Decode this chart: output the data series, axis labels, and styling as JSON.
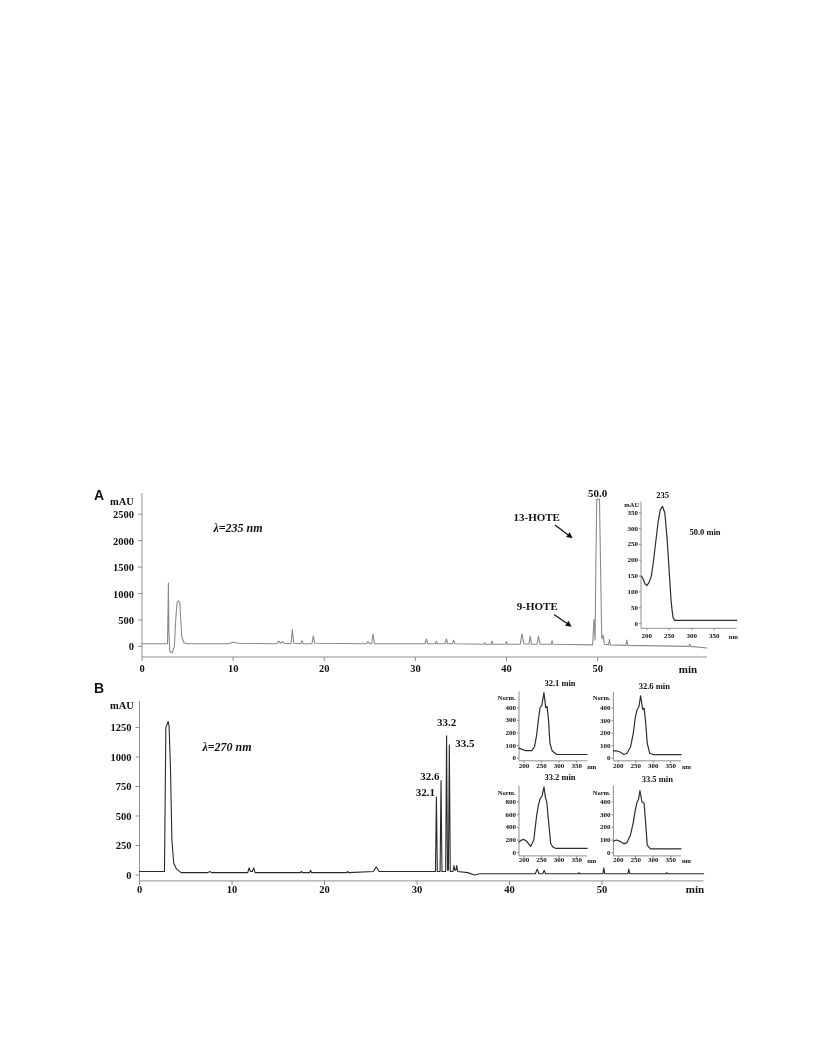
{
  "chart_data": [
    {
      "type": "line",
      "title": "A",
      "ylabel": "mAU",
      "xlabel": "min",
      "annotations": [
        "λ=235 nm",
        "13-HOTE",
        "9-HOTE",
        {
          "text": "50.0",
          "x": 50.0,
          "y": 2780
        }
      ],
      "xlim": [
        0,
        62
      ],
      "xticks": [
        0,
        10,
        20,
        30,
        40,
        50
      ],
      "ylim": [
        -200,
        2900
      ],
      "yticks": [
        0,
        500,
        1000,
        1500,
        2000,
        2500
      ],
      "x": [
        0,
        2.8,
        2.9,
        2.95,
        3.05,
        3.3,
        3.55,
        3.7,
        3.85,
        4.0,
        4.15,
        4.35,
        4.6,
        5.0,
        9.5,
        10.0,
        10.6,
        14.8,
        15.0,
        15.2,
        15.4,
        15.6,
        16.35,
        16.5,
        16.65,
        17.4,
        17.55,
        17.7,
        18.65,
        18.8,
        18.95,
        24.6,
        24.8,
        25.0,
        25.2,
        25.35,
        25.5,
        28.0,
        31.05,
        31.2,
        31.35,
        32.2,
        32.3,
        32.4,
        33.25,
        33.4,
        33.55,
        34.05,
        34.2,
        34.35,
        37.5,
        37.6,
        37.7,
        38.3,
        38.4,
        38.5,
        39.9,
        40.0,
        40.1,
        41.5,
        41.7,
        41.9,
        42.45,
        42.6,
        42.75,
        43.35,
        43.5,
        43.7,
        44.9,
        45.0,
        45.1,
        49.45,
        49.6,
        49.72,
        49.8,
        49.9,
        50.2,
        50.35,
        50.45,
        50.6,
        50.75,
        51.2,
        51.3,
        51.4,
        53.1,
        53.2,
        53.3,
        60.0,
        60.1,
        60.2,
        62.0
      ],
      "series": [
        {
          "color": "#8a8a8a",
          "values": [
            50,
            50,
            1200,
            300,
            -100,
            -120,
            0,
            500,
            830,
            860,
            820,
            200,
            70,
            50,
            50,
            80,
            60,
            50,
            100,
            60,
            90,
            60,
            50,
            320,
            60,
            50,
            110,
            50,
            50,
            200,
            60,
            50,
            90,
            50,
            50,
            240,
            50,
            50,
            50,
            140,
            50,
            50,
            100,
            50,
            50,
            140,
            50,
            50,
            120,
            50,
            40,
            70,
            40,
            40,
            100,
            40,
            40,
            90,
            40,
            40,
            240,
            50,
            40,
            190,
            40,
            40,
            190,
            40,
            40,
            110,
            40,
            30,
            510,
            120,
            1500,
            2780,
            2780,
            1200,
            150,
            210,
            40,
            30,
            130,
            30,
            20,
            120,
            20,
            0,
            40,
            0,
            -30
          ]
        }
      ]
    },
    {
      "type": "line",
      "title": "50.0 min",
      "ylabel": "mAU",
      "xlabel": "nm",
      "annotations": [
        {
          "text": "235",
          "x": 235,
          "y": 370
        }
      ],
      "xlim": [
        187,
        400
      ],
      "xticks": [
        200,
        250,
        300,
        350
      ],
      "ylim": [
        -15,
        385
      ],
      "yticks": [
        0,
        50,
        100,
        150,
        200,
        250,
        300,
        350
      ],
      "x": [
        188,
        192,
        196,
        200,
        205,
        210,
        215,
        220,
        225,
        230,
        235,
        240,
        245,
        250,
        254,
        258,
        262,
        270,
        400
      ],
      "series": [
        {
          "color": "#2e2e2e",
          "values": [
            150,
            140,
            125,
            120,
            130,
            150,
            200,
            260,
            320,
            360,
            370,
            350,
            270,
            160,
            70,
            20,
            10,
            10,
            10
          ]
        }
      ]
    },
    {
      "type": "line",
      "title": "B",
      "ylabel": "mAU",
      "xlabel": "min",
      "annotations": [
        "λ=270 nm",
        {
          "text": "32.1",
          "x": 32.1,
          "y": 660
        },
        {
          "text": "32.6",
          "x": 32.6,
          "y": 800
        },
        {
          "text": "33.2",
          "x": 33.2,
          "y": 1180
        },
        {
          "text": "33.5",
          "x": 33.5,
          "y": 1100
        }
      ],
      "xlim": [
        0,
        61
      ],
      "xticks": [
        0,
        10,
        20,
        30,
        40,
        50
      ],
      "ylim": [
        -50,
        1475
      ],
      "yticks": [
        0,
        250,
        500,
        750,
        1000,
        1250
      ],
      "x": [
        0,
        2.7,
        2.85,
        2.95,
        3.1,
        3.2,
        3.35,
        3.5,
        3.7,
        4.0,
        4.5,
        7.4,
        7.6,
        7.8,
        11.7,
        11.85,
        12.0,
        12.2,
        12.35,
        12.5,
        17.4,
        17.5,
        17.6,
        18.4,
        18.5,
        18.6,
        22.4,
        22.5,
        22.6,
        25.3,
        25.6,
        25.9,
        32.0,
        32.1,
        32.2,
        32.5,
        32.6,
        32.7,
        33.1,
        33.2,
        33.3,
        33.4,
        33.5,
        33.6,
        33.9,
        34.0,
        34.1,
        34.2,
        34.3,
        34.4,
        35.5,
        36.2,
        36.8,
        42.8,
        43.0,
        43.2,
        43.6,
        43.75,
        43.9,
        47.4,
        47.5,
        47.6,
        50.1,
        50.2,
        50.3,
        52.8,
        52.9,
        53.0,
        56.9,
        57.0,
        57.1,
        61
      ],
      "series": [
        {
          "color": "#2a2a2a",
          "values": [
            30,
            30,
            1250,
            1270,
            1300,
            1260,
            900,
            300,
            100,
            50,
            20,
            20,
            30,
            20,
            20,
            60,
            30,
            30,
            60,
            20,
            20,
            30,
            20,
            20,
            40,
            20,
            20,
            30,
            20,
            30,
            70,
            30,
            30,
            660,
            30,
            30,
            800,
            30,
            30,
            1180,
            40,
            40,
            1100,
            30,
            30,
            80,
            40,
            40,
            80,
            30,
            20,
            0,
            10,
            10,
            50,
            10,
            10,
            40,
            10,
            10,
            20,
            10,
            10,
            60,
            10,
            10,
            50,
            10,
            10,
            20,
            10,
            10
          ]
        }
      ]
    },
    {
      "type": "line",
      "title": "32.1 min",
      "ylabel": "Norm.",
      "xlabel": "nm",
      "xlim": [
        186,
        380
      ],
      "xticks": [
        200,
        250,
        300,
        350
      ],
      "ylim": [
        -20,
        530
      ],
      "yticks": [
        0,
        100,
        200,
        300,
        400
      ],
      "x": [
        186,
        195,
        205,
        215,
        222,
        230,
        236,
        241,
        246,
        251,
        257,
        262,
        266,
        270,
        274,
        280,
        293,
        380
      ],
      "series": [
        {
          "color": "#2e2e2e",
          "values": [
            80,
            70,
            60,
            60,
            60,
            90,
            180,
            300,
            400,
            420,
            520,
            400,
            410,
            300,
            120,
            60,
            30,
            30
          ]
        }
      ]
    },
    {
      "type": "line",
      "title": "32.6 min",
      "ylabel": "Norm.",
      "xlabel": "nm",
      "xlim": [
        186,
        380
      ],
      "xticks": [
        200,
        250,
        300,
        350
      ],
      "ylim": [
        -20,
        530
      ],
      "yticks": [
        0,
        100,
        200,
        300,
        400
      ],
      "x": [
        186,
        195,
        205,
        216,
        225,
        235,
        243,
        249,
        254,
        259,
        264,
        270,
        274,
        278,
        283,
        290,
        300,
        380
      ],
      "series": [
        {
          "color": "#2e2e2e",
          "values": [
            60,
            60,
            50,
            30,
            40,
            90,
            200,
            330,
            390,
            410,
            500,
            390,
            400,
            300,
            120,
            40,
            30,
            30
          ]
        }
      ]
    },
    {
      "type": "line",
      "title": "33.2 min",
      "ylabel": "Norm.",
      "xlabel": "nm",
      "xlim": [
        186,
        380
      ],
      "xticks": [
        200,
        250,
        300,
        350
      ],
      "ylim": [
        -50,
        1060
      ],
      "yticks": [
        0,
        200,
        400,
        600,
        800
      ],
      "x": [
        186,
        193,
        200,
        208,
        219,
        228,
        236,
        241,
        246,
        252,
        257,
        261,
        265,
        270,
        276,
        282,
        290,
        380
      ],
      "series": [
        {
          "color": "#2e2e2e",
          "values": [
            170,
            200,
            210,
            180,
            100,
            200,
            580,
            750,
            850,
            900,
            1040,
            880,
            800,
            500,
            150,
            90,
            70,
            70
          ]
        }
      ]
    },
    {
      "type": "line",
      "title": "33.5 min",
      "ylabel": "Norm.",
      "xlabel": "nm",
      "xlim": [
        186,
        380
      ],
      "xticks": [
        200,
        250,
        300,
        350
      ],
      "ylim": [
        -25,
        530
      ],
      "yticks": [
        0,
        100,
        200,
        300,
        400
      ],
      "x": [
        186,
        195,
        205,
        216,
        225,
        235,
        243,
        249,
        254,
        258,
        262,
        268,
        274,
        278,
        283,
        292,
        380
      ],
      "series": [
        {
          "color": "#2e2e2e",
          "values": [
            90,
            100,
            90,
            70,
            80,
            140,
            240,
            340,
            400,
            420,
            490,
            400,
            390,
            250,
            60,
            30,
            30
          ]
        }
      ]
    }
  ]
}
